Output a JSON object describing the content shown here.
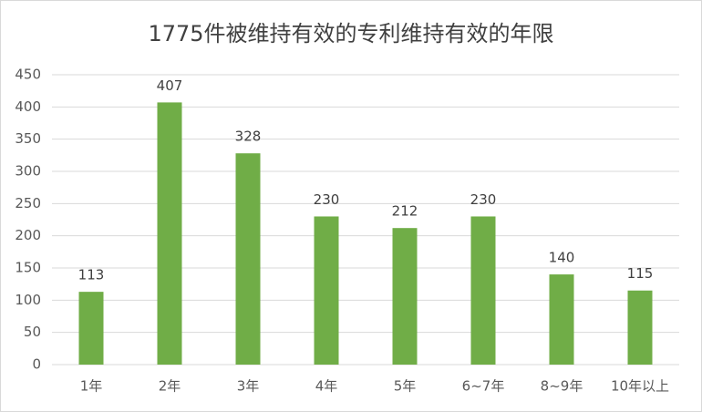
{
  "chart_data": {
    "type": "bar",
    "title": "1775件被维持有效的专利维持有效的年限",
    "categories": [
      "1年",
      "2年",
      "3年",
      "4年",
      "5年",
      "6~7年",
      "8~9年",
      "10年以上"
    ],
    "values": [
      113,
      407,
      328,
      230,
      212,
      230,
      140,
      115
    ],
    "color": "#70ad47",
    "ylim": [
      0,
      450
    ],
    "yticks": [
      0,
      50,
      100,
      150,
      200,
      250,
      300,
      350,
      400,
      450
    ],
    "grid": true
  }
}
